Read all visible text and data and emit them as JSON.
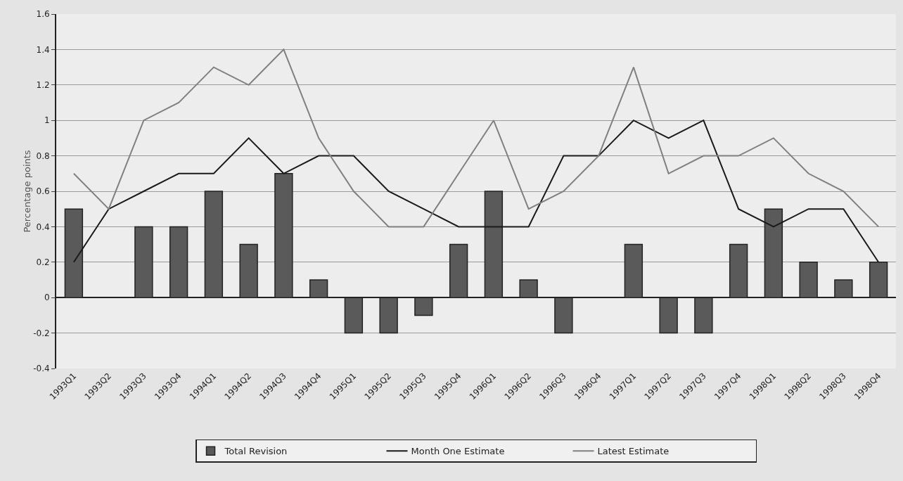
{
  "chart_data": {
    "type": "bar",
    "ylabel": "Percentage points",
    "categories": [
      "1993Q1",
      "1993Q2",
      "1993Q3",
      "1993Q4",
      "1994Q1",
      "1994Q2",
      "1994Q3",
      "1994Q4",
      "1995Q1",
      "1995Q2",
      "1995Q3",
      "1995Q4",
      "1996Q1",
      "1996Q2",
      "1996Q3",
      "1996Q4",
      "1997Q1",
      "1997Q2",
      "1997Q3",
      "1997Q4",
      "1998Q1",
      "1998Q2",
      "1998Q3",
      "1998Q4"
    ],
    "series": [
      {
        "name": "Total Revision",
        "color": "#5a5a5a",
        "values": [
          0.5,
          0,
          0.4,
          0.4,
          0.6,
          0.3,
          0.7,
          0.1,
          -0.2,
          -0.2,
          -0.1,
          0.3,
          0.6,
          0.1,
          -0.2,
          0,
          0.3,
          -0.2,
          -0.2,
          0.3,
          0.5,
          0.2,
          0.1,
          0.2
        ]
      },
      {
        "name": "Month One Estimate",
        "type": "line",
        "color": "#1a1a1a",
        "values": [
          0.2,
          0.5,
          0.6,
          0.7,
          0.7,
          0.9,
          0.7,
          0.8,
          0.8,
          0.6,
          0.5,
          0.4,
          0.4,
          0.4,
          0.8,
          0.8,
          1.0,
          0.9,
          1.0,
          0.5,
          0.4,
          0.5,
          0.5,
          0.2
        ]
      },
      {
        "name": "Latest Estimate",
        "type": "line",
        "color": "#808080",
        "values": [
          0.7,
          0.5,
          1.0,
          1.1,
          1.3,
          1.2,
          1.4,
          0.9,
          0.6,
          0.4,
          0.4,
          0.7,
          1.0,
          0.5,
          0.6,
          0.8,
          1.3,
          0.7,
          0.8,
          0.8,
          0.9,
          0.7,
          0.6,
          0.4
        ]
      }
    ],
    "ylim": [
      -0.4,
      1.6
    ],
    "yticks": [
      -0.4,
      -0.2,
      0,
      0.2,
      0.4,
      0.6,
      0.8,
      1,
      1.2,
      1.4,
      1.6
    ],
    "grid": "y",
    "legend": "bottom",
    "marker": "none",
    "line_style": "solid"
  }
}
